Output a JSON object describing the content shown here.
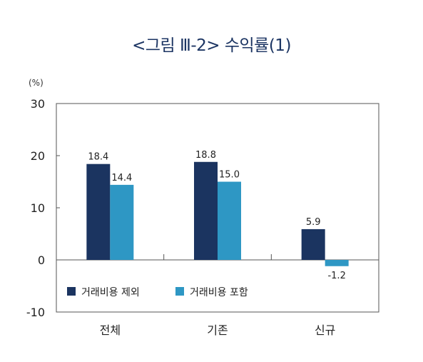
{
  "chart_data": {
    "type": "bar",
    "title": "<그림 Ⅲ-2> 수익률(1)",
    "unit_label": "(%)",
    "categories": [
      "전체",
      "기존",
      "신규"
    ],
    "series": [
      {
        "name": "거래비용 제외",
        "values": [
          18.4,
          18.8,
          5.9
        ],
        "labels": [
          "18.4",
          "18.8",
          "5.9"
        ],
        "color": "#1b3460"
      },
      {
        "name": "거래비용 포함",
        "values": [
          14.4,
          15.0,
          -1.2
        ],
        "labels": [
          "14.4",
          "15.0",
          "-1.2"
        ],
        "color": "#2e97c4"
      }
    ],
    "ylim": [
      -10,
      30
    ],
    "yticks": [
      -10,
      0,
      10,
      20,
      30
    ],
    "grid": false,
    "legend": "bottom-left"
  }
}
